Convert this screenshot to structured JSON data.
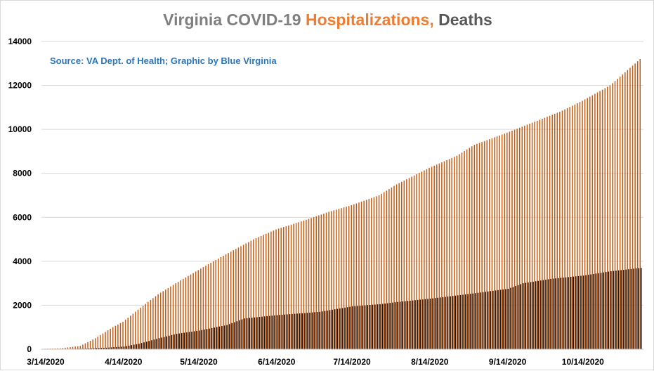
{
  "chart_data": {
    "type": "bar",
    "title_parts": [
      "Virginia COVID-19 ",
      "Hospitalizations,",
      " Deaths"
    ],
    "title_colors": [
      "#7f7f7f",
      "#ed7d31",
      "#595959"
    ],
    "source": "Source: VA Dept. of Health; Graphic by Blue Virginia",
    "source_color": "#2e75b6",
    "ylim": [
      0,
      14000
    ],
    "yticks": [
      "0",
      "2000",
      "4000",
      "6000",
      "8000",
      "10000",
      "12000",
      "14000"
    ],
    "ytick_values": [
      0,
      2000,
      4000,
      6000,
      8000,
      10000,
      12000,
      14000
    ],
    "xticks": [
      "3/14/2020",
      "4/14/2020",
      "5/14/2020",
      "6/14/2020",
      "7/14/2020",
      "8/14/2020",
      "9/14/2020",
      "10/14/2020"
    ],
    "x_start": "3/14/2020",
    "x_end": "11/6/2020",
    "grid": true,
    "series": [
      {
        "color": "#c55a11",
        "anchors": [
          [
            "3/14/2020",
            20
          ],
          [
            "3/20/2020",
            40
          ],
          [
            "3/28/2020",
            150
          ],
          [
            "4/3/2020",
            500
          ],
          [
            "4/10/2020",
            1000
          ],
          [
            "4/14/2020",
            1250
          ],
          [
            "4/20/2020",
            1800
          ],
          [
            "4/28/2020",
            2500
          ],
          [
            "5/5/2020",
            3000
          ],
          [
            "5/14/2020",
            3600
          ],
          [
            "5/20/2020",
            4000
          ],
          [
            "5/28/2020",
            4500
          ],
          [
            "6/5/2020",
            5000
          ],
          [
            "6/14/2020",
            5450
          ],
          [
            "6/25/2020",
            5850
          ],
          [
            "7/5/2020",
            6250
          ],
          [
            "7/14/2020",
            6550
          ],
          [
            "7/25/2020",
            7000
          ],
          [
            "8/1/2020",
            7500
          ],
          [
            "8/14/2020",
            8250
          ],
          [
            "8/25/2020",
            8800
          ],
          [
            "9/1/2020",
            9300
          ],
          [
            "9/14/2020",
            9850
          ],
          [
            "9/25/2020",
            10350
          ],
          [
            "10/5/2020",
            10800
          ],
          [
            "10/14/2020",
            11300
          ],
          [
            "10/25/2020",
            12000
          ],
          [
            "11/6/2020",
            13200
          ]
        ]
      },
      {
        "color": "#1a1a1a",
        "anchors": [
          [
            "3/14/2020",
            0
          ],
          [
            "3/28/2020",
            25
          ],
          [
            "4/7/2020",
            70
          ],
          [
            "4/14/2020",
            120
          ],
          [
            "4/20/2020",
            250
          ],
          [
            "4/28/2020",
            500
          ],
          [
            "5/5/2020",
            700
          ],
          [
            "5/14/2020",
            850
          ],
          [
            "5/25/2020",
            1100
          ],
          [
            "6/1/2020",
            1400
          ],
          [
            "6/14/2020",
            1550
          ],
          [
            "7/1/2020",
            1700
          ],
          [
            "7/14/2020",
            1950
          ],
          [
            "7/25/2020",
            2050
          ],
          [
            "8/1/2020",
            2150
          ],
          [
            "8/14/2020",
            2300
          ],
          [
            "8/25/2020",
            2450
          ],
          [
            "9/1/2020",
            2550
          ],
          [
            "9/14/2020",
            2750
          ],
          [
            "9/20/2020",
            3000
          ],
          [
            "10/1/2020",
            3200
          ],
          [
            "10/14/2020",
            3350
          ],
          [
            "10/25/2020",
            3550
          ],
          [
            "11/6/2020",
            3700
          ]
        ]
      }
    ]
  }
}
